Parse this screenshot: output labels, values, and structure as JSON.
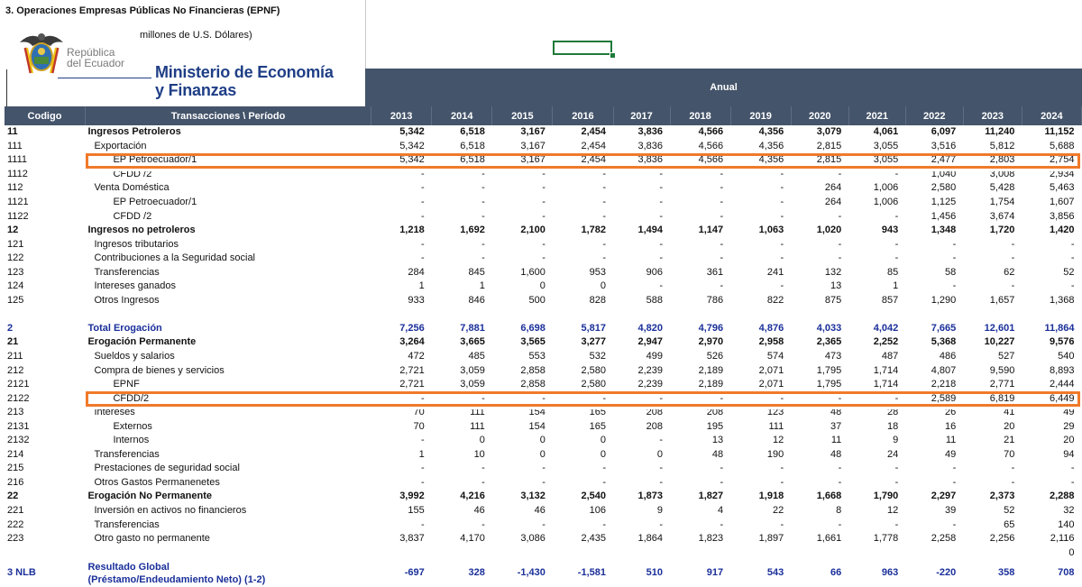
{
  "header": {
    "title": "3. Operaciones Empresas Públicas No Financieras (EPNF)",
    "subtitle": "millones de U.S. Dólares)",
    "logo_republica": [
      "República",
      "del Ecuador"
    ],
    "logo_ministerio": [
      "Ministerio de Economía",
      "y Finanzas"
    ],
    "period_header": "Anual"
  },
  "columns": {
    "code": "Codigo",
    "label": "Transacciones \\  Período",
    "years": [
      "2013",
      "2014",
      "2015",
      "2016",
      "2017",
      "2018",
      "2019",
      "2020",
      "2021",
      "2022",
      "2023",
      "2024"
    ]
  },
  "rows": [
    {
      "code": "11",
      "label": "Ingresos Petroleros",
      "style": "bold",
      "indent": 0,
      "values": [
        "5,342",
        "6,518",
        "3,167",
        "2,454",
        "3,836",
        "4,566",
        "4,356",
        "3,079",
        "4,061",
        "6,097",
        "11,240",
        "11,152"
      ]
    },
    {
      "code": "111",
      "label": "Exportación",
      "style": "",
      "indent": 1,
      "values": [
        "5,342",
        "6,518",
        "3,167",
        "2,454",
        "3,836",
        "4,566",
        "4,356",
        "2,815",
        "3,055",
        "3,516",
        "5,812",
        "5,688"
      ]
    },
    {
      "code": "1111",
      "label": "EP Petroecuador/1",
      "style": "",
      "indent": 2,
      "values": [
        "5,342",
        "6,518",
        "3,167",
        "2,454",
        "3,836",
        "4,566",
        "4,356",
        "2,815",
        "3,055",
        "2,477",
        "2,803",
        "2,754"
      ]
    },
    {
      "code": "1112",
      "label": "CFDD /2",
      "style": "",
      "indent": 2,
      "values": [
        "-",
        "-",
        "-",
        "-",
        "-",
        "-",
        "-",
        "-",
        "-",
        "1,040",
        "3,008",
        "2,934"
      ]
    },
    {
      "code": "112",
      "label": "Venta Doméstica",
      "style": "",
      "indent": 1,
      "values": [
        "-",
        "-",
        "-",
        "-",
        "-",
        "-",
        "-",
        "264",
        "1,006",
        "2,580",
        "5,428",
        "5,463"
      ]
    },
    {
      "code": "1121",
      "label": "EP Petroecuador/1",
      "style": "",
      "indent": 2,
      "values": [
        "-",
        "-",
        "-",
        "-",
        "-",
        "-",
        "-",
        "264",
        "1,006",
        "1,125",
        "1,754",
        "1,607"
      ]
    },
    {
      "code": "1122",
      "label": "CFDD /2",
      "style": "",
      "indent": 2,
      "values": [
        "-",
        "-",
        "-",
        "-",
        "-",
        "-",
        "-",
        "-",
        "-",
        "1,456",
        "3,674",
        "3,856"
      ]
    },
    {
      "code": "12",
      "label": "Ingresos no petroleros",
      "style": "bold",
      "indent": 0,
      "values": [
        "1,218",
        "1,692",
        "2,100",
        "1,782",
        "1,494",
        "1,147",
        "1,063",
        "1,020",
        "943",
        "1,348",
        "1,720",
        "1,420"
      ]
    },
    {
      "code": "121",
      "label": "Ingresos tributarios",
      "style": "",
      "indent": 1,
      "values": [
        "-",
        "-",
        "-",
        "-",
        "-",
        "-",
        "-",
        "-",
        "-",
        "-",
        "-",
        "-"
      ]
    },
    {
      "code": "122",
      "label": "Contribuciones a la Seguridad social",
      "style": "",
      "indent": 1,
      "values": [
        "-",
        "-",
        "-",
        "-",
        "-",
        "-",
        "-",
        "-",
        "-",
        "-",
        "-",
        "-"
      ]
    },
    {
      "code": "123",
      "label": "Transferencias",
      "style": "",
      "indent": 1,
      "values": [
        "284",
        "845",
        "1,600",
        "953",
        "906",
        "361",
        "241",
        "132",
        "85",
        "58",
        "62",
        "52"
      ]
    },
    {
      "code": "124",
      "label": "Intereses ganados",
      "style": "",
      "indent": 1,
      "values": [
        "1",
        "1",
        "0",
        "0",
        "-",
        "-",
        "-",
        "13",
        "1",
        "-",
        "-",
        "-"
      ]
    },
    {
      "code": "125",
      "label": "Otros Ingresos",
      "style": "",
      "indent": 1,
      "values": [
        "933",
        "846",
        "500",
        "828",
        "588",
        "786",
        "822",
        "875",
        "857",
        "1,290",
        "1,657",
        "1,368"
      ]
    },
    {
      "code": "",
      "label": "",
      "style": "",
      "indent": 0,
      "values": [
        "",
        "",
        "",
        "",
        "",
        "",
        "",
        "",
        "",
        "",
        "",
        ""
      ]
    },
    {
      "code": "2",
      "label": "Total Erogación",
      "style": "bold blue",
      "indent": 0,
      "values": [
        "7,256",
        "7,881",
        "6,698",
        "5,817",
        "4,820",
        "4,796",
        "4,876",
        "4,033",
        "4,042",
        "7,665",
        "12,601",
        "11,864"
      ]
    },
    {
      "code": "21",
      "label": "Erogación Permanente",
      "style": "bold",
      "indent": 0,
      "values": [
        "3,264",
        "3,665",
        "3,565",
        "3,277",
        "2,947",
        "2,970",
        "2,958",
        "2,365",
        "2,252",
        "5,368",
        "10,227",
        "9,576"
      ]
    },
    {
      "code": "211",
      "label": "Sueldos y salarios",
      "style": "",
      "indent": 1,
      "values": [
        "472",
        "485",
        "553",
        "532",
        "499",
        "526",
        "574",
        "473",
        "487",
        "486",
        "527",
        "540"
      ]
    },
    {
      "code": "212",
      "label": "Compra de bienes y servicios",
      "style": "",
      "indent": 1,
      "values": [
        "2,721",
        "3,059",
        "2,858",
        "2,580",
        "2,239",
        "2,189",
        "2,071",
        "1,795",
        "1,714",
        "4,807",
        "9,590",
        "8,893"
      ]
    },
    {
      "code": "2121",
      "label": "EPNF",
      "style": "",
      "indent": 2,
      "values": [
        "2,721",
        "3,059",
        "2,858",
        "2,580",
        "2,239",
        "2,189",
        "2,071",
        "1,795",
        "1,714",
        "2,218",
        "2,771",
        "2,444"
      ]
    },
    {
      "code": "2122",
      "label": "CFDD/2",
      "style": "",
      "indent": 2,
      "values": [
        "-",
        "-",
        "-",
        "-",
        "-",
        "-",
        "-",
        "-",
        "-",
        "2,589",
        "6,819",
        "6,449"
      ]
    },
    {
      "code": "213",
      "label": "Intereses",
      "style": "",
      "indent": 1,
      "values": [
        "70",
        "111",
        "154",
        "165",
        "208",
        "208",
        "123",
        "48",
        "28",
        "26",
        "41",
        "49"
      ]
    },
    {
      "code": "2131",
      "label": "Externos",
      "style": "",
      "indent": 2,
      "values": [
        "70",
        "111",
        "154",
        "165",
        "208",
        "195",
        "111",
        "37",
        "18",
        "16",
        "20",
        "29"
      ]
    },
    {
      "code": "2132",
      "label": "Internos",
      "style": "",
      "indent": 2,
      "values": [
        "-",
        "0",
        "0",
        "0",
        "-",
        "13",
        "12",
        "11",
        "9",
        "11",
        "21",
        "20"
      ]
    },
    {
      "code": "214",
      "label": "Transferencias",
      "style": "",
      "indent": 1,
      "values": [
        "1",
        "10",
        "0",
        "0",
        "0",
        "48",
        "190",
        "48",
        "24",
        "49",
        "70",
        "94"
      ]
    },
    {
      "code": "215",
      "label": "Prestaciones de seguridad social",
      "style": "",
      "indent": 1,
      "values": [
        "-",
        "-",
        "-",
        "-",
        "-",
        "-",
        "-",
        "-",
        "-",
        "-",
        "-",
        "-"
      ]
    },
    {
      "code": "216",
      "label": "Otros Gastos Permanenetes",
      "style": "",
      "indent": 1,
      "values": [
        "-",
        "-",
        "-",
        "-",
        "-",
        "-",
        "-",
        "-",
        "-",
        "-",
        "-",
        "-"
      ]
    },
    {
      "code": "22",
      "label": "Erogación No Permanente",
      "style": "bold",
      "indent": 0,
      "values": [
        "3,992",
        "4,216",
        "3,132",
        "2,540",
        "1,873",
        "1,827",
        "1,918",
        "1,668",
        "1,790",
        "2,297",
        "2,373",
        "2,288"
      ]
    },
    {
      "code": "221",
      "label": "Inversión en activos no financieros",
      "style": "",
      "indent": 1,
      "values": [
        "155",
        "46",
        "46",
        "106",
        "9",
        "4",
        "22",
        "8",
        "12",
        "39",
        "52",
        "32"
      ]
    },
    {
      "code": "222",
      "label": "Transferencias",
      "style": "",
      "indent": 1,
      "values": [
        "-",
        "-",
        "-",
        "-",
        "-",
        "-",
        "-",
        "-",
        "-",
        "-",
        "65",
        "140"
      ]
    },
    {
      "code": "223",
      "label": "Otro gasto no permanente",
      "style": "",
      "indent": 1,
      "values": [
        "3,837",
        "4,170",
        "3,086",
        "2,435",
        "1,864",
        "1,823",
        "1,897",
        "1,661",
        "1,778",
        "2,258",
        "2,256",
        "2,116"
      ]
    },
    {
      "code": "",
      "label": "",
      "style": "",
      "indent": 0,
      "values": [
        "",
        "",
        "",
        "",
        "",
        "",
        "",
        "",
        "",
        "",
        "",
        "0"
      ]
    },
    {
      "code": "3 NLB",
      "label": "Resultado Global",
      "label2": "(Préstamo/Endeudamiento Neto)  (1-2)",
      "style": "bold blue",
      "indent": 0,
      "values": [
        "-697",
        "328",
        "-1,430",
        "-1,581",
        "510",
        "917",
        "543",
        "66",
        "963",
        "-220",
        "358",
        "708"
      ]
    }
  ],
  "colors": {
    "header_bg": "#44546a",
    "highlight": "#f07a2a",
    "blue_text": "#1a2f9a",
    "logo_blue": "#1f3e86"
  }
}
